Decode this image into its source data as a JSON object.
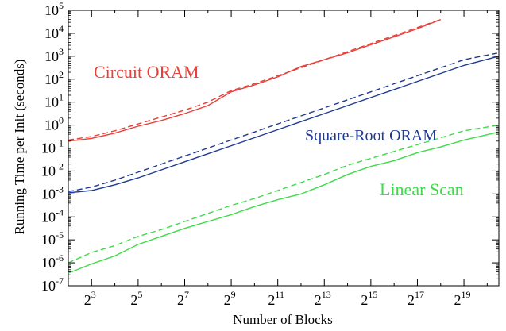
{
  "chart_data": {
    "type": "line",
    "xlabel": "Number of Blocks",
    "ylabel": "Running Time per Init (seconds)",
    "x_scale": "log2",
    "y_scale": "log10",
    "xlim": [
      2,
      20.5
    ],
    "ylim": [
      -7,
      5
    ],
    "x_ticks": [
      {
        "base": "2",
        "exp": "3",
        "value": 3
      },
      {
        "base": "2",
        "exp": "5",
        "value": 5
      },
      {
        "base": "2",
        "exp": "7",
        "value": 7
      },
      {
        "base": "2",
        "exp": "9",
        "value": 9
      },
      {
        "base": "2",
        "exp": "11",
        "value": 11
      },
      {
        "base": "2",
        "exp": "13",
        "value": 13
      },
      {
        "base": "2",
        "exp": "15",
        "value": 15
      },
      {
        "base": "2",
        "exp": "17",
        "value": 17
      },
      {
        "base": "2",
        "exp": "19",
        "value": 19
      }
    ],
    "y_ticks": [
      {
        "base": "10",
        "exp": "-7",
        "value": -7
      },
      {
        "base": "10",
        "exp": "-6",
        "value": -6
      },
      {
        "base": "10",
        "exp": "-5",
        "value": -5
      },
      {
        "base": "10",
        "exp": "-4",
        "value": -4
      },
      {
        "base": "10",
        "exp": "-3",
        "value": -3
      },
      {
        "base": "10",
        "exp": "-2",
        "value": -2
      },
      {
        "base": "10",
        "exp": "-1",
        "value": -1
      },
      {
        "base": "10",
        "exp": "0",
        "value": 0
      },
      {
        "base": "10",
        "exp": "1",
        "value": 1
      },
      {
        "base": "10",
        "exp": "2",
        "value": 2
      },
      {
        "base": "10",
        "exp": "3",
        "value": 3
      },
      {
        "base": "10",
        "exp": "4",
        "value": 4
      },
      {
        "base": "10",
        "exp": "5",
        "value": 5
      }
    ],
    "series": [
      {
        "label": "Circuit ORAM",
        "color": "#e8413a",
        "solid": [
          [
            2,
            -0.7
          ],
          [
            3,
            -0.58
          ],
          [
            4,
            -0.35
          ],
          [
            5,
            -0.05
          ],
          [
            6,
            0.2
          ],
          [
            7,
            0.5
          ],
          [
            8,
            0.85
          ],
          [
            9,
            1.45
          ],
          [
            10,
            1.75
          ],
          [
            11,
            2.1
          ],
          [
            12,
            2.55
          ],
          [
            13,
            2.85
          ],
          [
            14,
            3.15
          ],
          [
            15,
            3.5
          ],
          [
            16,
            3.85
          ],
          [
            17,
            4.2
          ],
          [
            18,
            4.6
          ]
        ],
        "dashed": [
          [
            2,
            -0.65
          ],
          [
            3,
            -0.5
          ],
          [
            4,
            -0.25
          ],
          [
            5,
            0.05
          ],
          [
            6,
            0.35
          ],
          [
            7,
            0.65
          ],
          [
            8,
            1.0
          ],
          [
            9,
            1.5
          ],
          [
            10,
            1.8
          ],
          [
            11,
            2.15
          ],
          [
            12,
            2.5
          ],
          [
            13,
            2.85
          ],
          [
            14,
            3.2
          ],
          [
            15,
            3.55
          ],
          [
            16,
            3.9
          ],
          [
            17,
            4.25
          ],
          [
            18,
            4.6
          ]
        ]
      },
      {
        "label": "Square-Root ORAM",
        "color": "#1f3a93",
        "solid": [
          [
            2,
            -2.95
          ],
          [
            3,
            -2.85
          ],
          [
            4,
            -2.6
          ],
          [
            5,
            -2.3
          ],
          [
            6,
            -1.95
          ],
          [
            7,
            -1.6
          ],
          [
            8,
            -1.25
          ],
          [
            9,
            -0.9
          ],
          [
            10,
            -0.55
          ],
          [
            11,
            -0.2
          ],
          [
            12,
            0.15
          ],
          [
            13,
            0.5
          ],
          [
            14,
            0.85
          ],
          [
            15,
            1.2
          ],
          [
            16,
            1.55
          ],
          [
            17,
            1.9
          ],
          [
            18,
            2.25
          ],
          [
            19,
            2.6
          ],
          [
            20.5,
            3.0
          ]
        ],
        "dashed": [
          [
            2,
            -2.9
          ],
          [
            3,
            -2.7
          ],
          [
            4,
            -2.4
          ],
          [
            5,
            -2.05
          ],
          [
            6,
            -1.7
          ],
          [
            7,
            -1.35
          ],
          [
            8,
            -1.0
          ],
          [
            9,
            -0.65
          ],
          [
            10,
            -0.3
          ],
          [
            11,
            0.05
          ],
          [
            12,
            0.4
          ],
          [
            13,
            0.75
          ],
          [
            14,
            1.1
          ],
          [
            15,
            1.45
          ],
          [
            16,
            1.8
          ],
          [
            17,
            2.15
          ],
          [
            18,
            2.5
          ],
          [
            19,
            2.85
          ],
          [
            20.5,
            3.15
          ]
        ]
      },
      {
        "label": "Linear Scan",
        "color": "#3ddc48",
        "solid": [
          [
            2,
            -6.45
          ],
          [
            3,
            -6.05
          ],
          [
            4,
            -5.7
          ],
          [
            5,
            -5.2
          ],
          [
            6,
            -4.85
          ],
          [
            7,
            -4.5
          ],
          [
            8,
            -4.2
          ],
          [
            9,
            -3.9
          ],
          [
            10,
            -3.55
          ],
          [
            11,
            -3.25
          ],
          [
            12,
            -3.0
          ],
          [
            13,
            -2.6
          ],
          [
            14,
            -2.15
          ],
          [
            15,
            -1.8
          ],
          [
            16,
            -1.55
          ],
          [
            17,
            -1.2
          ],
          [
            18,
            -0.95
          ],
          [
            19,
            -0.65
          ],
          [
            20.5,
            -0.3
          ]
        ],
        "dashed": [
          [
            2,
            -6.0
          ],
          [
            3,
            -5.55
          ],
          [
            4,
            -5.25
          ],
          [
            5,
            -4.85
          ],
          [
            6,
            -4.55
          ],
          [
            7,
            -4.2
          ],
          [
            8,
            -3.85
          ],
          [
            9,
            -3.5
          ],
          [
            10,
            -3.2
          ],
          [
            11,
            -2.85
          ],
          [
            12,
            -2.5
          ],
          [
            13,
            -2.15
          ],
          [
            14,
            -1.75
          ],
          [
            15,
            -1.45
          ],
          [
            16,
            -1.15
          ],
          [
            17,
            -0.85
          ],
          [
            18,
            -0.55
          ],
          [
            19,
            -0.25
          ],
          [
            20.5,
            0.0
          ]
        ]
      }
    ]
  }
}
